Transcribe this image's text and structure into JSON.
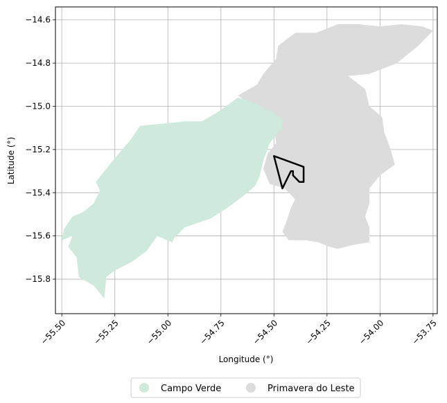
{
  "chart_data": {
    "type": "map",
    "xlabel": "Longitude (°)",
    "ylabel": "Latitude (°)",
    "xlim": [
      -55.53,
      -53.73
    ],
    "ylim": [
      -15.96,
      -14.54
    ],
    "grid": true,
    "x_ticks": [
      {
        "value": -55.5,
        "label": "−55.50"
      },
      {
        "value": -55.25,
        "label": "−55.25"
      },
      {
        "value": -55.0,
        "label": "−55.00"
      },
      {
        "value": -54.75,
        "label": "−54.75"
      },
      {
        "value": -54.5,
        "label": "−54.50"
      },
      {
        "value": -54.25,
        "label": "−54.25"
      },
      {
        "value": -54.0,
        "label": "−54.00"
      },
      {
        "value": -53.75,
        "label": "−53.75"
      }
    ],
    "y_ticks": [
      {
        "value": -14.6,
        "label": "−14.6"
      },
      {
        "value": -14.8,
        "label": "−14.8"
      },
      {
        "value": -15.0,
        "label": "−15.0"
      },
      {
        "value": -15.2,
        "label": "−15.2"
      },
      {
        "value": -15.4,
        "label": "−15.4"
      },
      {
        "value": -15.6,
        "label": "−15.6"
      },
      {
        "value": -15.8,
        "label": "−15.8"
      }
    ],
    "legend_position": "bottom-center",
    "regions": [
      {
        "name": "Primavera do Leste",
        "color": "#dcdcdc",
        "coords": [
          [
            -54.3,
            -14.66
          ],
          [
            -54.2,
            -14.62
          ],
          [
            -54.1,
            -14.62
          ],
          [
            -54.0,
            -14.63
          ],
          [
            -53.9,
            -14.62
          ],
          [
            -53.8,
            -14.63
          ],
          [
            -53.75,
            -14.65
          ],
          [
            -53.82,
            -14.72
          ],
          [
            -53.92,
            -14.8
          ],
          [
            -54.05,
            -14.85
          ],
          [
            -54.15,
            -14.86
          ],
          [
            -54.07,
            -14.92
          ],
          [
            -54.05,
            -15.0
          ],
          [
            -53.99,
            -15.05
          ],
          [
            -53.98,
            -15.12
          ],
          [
            -53.95,
            -15.2
          ],
          [
            -53.93,
            -15.27
          ],
          [
            -54.0,
            -15.32
          ],
          [
            -54.05,
            -15.38
          ],
          [
            -54.05,
            -15.45
          ],
          [
            -54.07,
            -15.51
          ],
          [
            -54.05,
            -15.56
          ],
          [
            -54.05,
            -15.63
          ],
          [
            -54.12,
            -15.64
          ],
          [
            -54.2,
            -15.66
          ],
          [
            -54.24,
            -15.65
          ],
          [
            -54.29,
            -15.63
          ],
          [
            -54.35,
            -15.62
          ],
          [
            -54.43,
            -15.62
          ],
          [
            -54.46,
            -15.58
          ],
          [
            -54.44,
            -15.53
          ],
          [
            -54.42,
            -15.47
          ],
          [
            -54.4,
            -15.43
          ],
          [
            -54.45,
            -15.38
          ],
          [
            -54.52,
            -15.36
          ],
          [
            -54.55,
            -15.29
          ],
          [
            -54.53,
            -15.22
          ],
          [
            -54.49,
            -15.17
          ],
          [
            -54.5,
            -15.1
          ],
          [
            -54.53,
            -15.05
          ],
          [
            -54.6,
            -15.0
          ],
          [
            -54.67,
            -14.95
          ],
          [
            -54.58,
            -14.9
          ],
          [
            -54.55,
            -14.85
          ],
          [
            -54.49,
            -14.78
          ],
          [
            -54.48,
            -14.72
          ],
          [
            -54.4,
            -14.66
          ]
        ]
      },
      {
        "name": "Campo Verde",
        "color": "#cfeadd",
        "coords": [
          [
            -55.34,
            -15.35
          ],
          [
            -55.25,
            -15.24
          ],
          [
            -55.18,
            -15.16
          ],
          [
            -55.13,
            -15.09
          ],
          [
            -55.02,
            -15.08
          ],
          [
            -54.92,
            -15.07
          ],
          [
            -54.84,
            -15.07
          ],
          [
            -54.77,
            -15.03
          ],
          [
            -54.67,
            -14.96
          ],
          [
            -54.6,
            -14.98
          ],
          [
            -54.55,
            -15.01
          ],
          [
            -54.5,
            -15.03
          ],
          [
            -54.46,
            -15.06
          ],
          [
            -54.46,
            -15.1
          ],
          [
            -54.52,
            -15.17
          ],
          [
            -54.55,
            -15.25
          ],
          [
            -54.57,
            -15.33
          ],
          [
            -54.59,
            -15.37
          ],
          [
            -54.65,
            -15.42
          ],
          [
            -54.72,
            -15.47
          ],
          [
            -54.8,
            -15.52
          ],
          [
            -54.92,
            -15.56
          ],
          [
            -54.97,
            -15.61
          ],
          [
            -54.98,
            -15.63
          ],
          [
            -55.05,
            -15.6
          ],
          [
            -55.1,
            -15.67
          ],
          [
            -55.17,
            -15.72
          ],
          [
            -55.25,
            -15.76
          ],
          [
            -55.29,
            -15.79
          ],
          [
            -55.3,
            -15.89
          ],
          [
            -55.35,
            -15.83
          ],
          [
            -55.42,
            -15.79
          ],
          [
            -55.43,
            -15.7
          ],
          [
            -55.47,
            -15.65
          ],
          [
            -55.45,
            -15.6
          ],
          [
            -55.5,
            -15.62
          ],
          [
            -55.49,
            -15.57
          ],
          [
            -55.45,
            -15.51
          ],
          [
            -55.4,
            -15.49
          ],
          [
            -55.35,
            -15.45
          ],
          [
            -55.32,
            -15.39
          ]
        ]
      }
    ],
    "outline": {
      "color": "#000000",
      "coords": [
        [
          -54.5,
          -15.23
        ],
        [
          -54.36,
          -15.28
        ],
        [
          -54.36,
          -15.35
        ],
        [
          -54.38,
          -15.35
        ],
        [
          -54.39,
          -15.34
        ],
        [
          -54.41,
          -15.32
        ],
        [
          -54.41,
          -15.3
        ],
        [
          -54.42,
          -15.3
        ],
        [
          -54.46,
          -15.38
        ]
      ]
    }
  },
  "legend": [
    {
      "label": "Campo Verde",
      "color": "#cfeadd"
    },
    {
      "label": "Primavera do Leste",
      "color": "#dcdcdc"
    }
  ]
}
